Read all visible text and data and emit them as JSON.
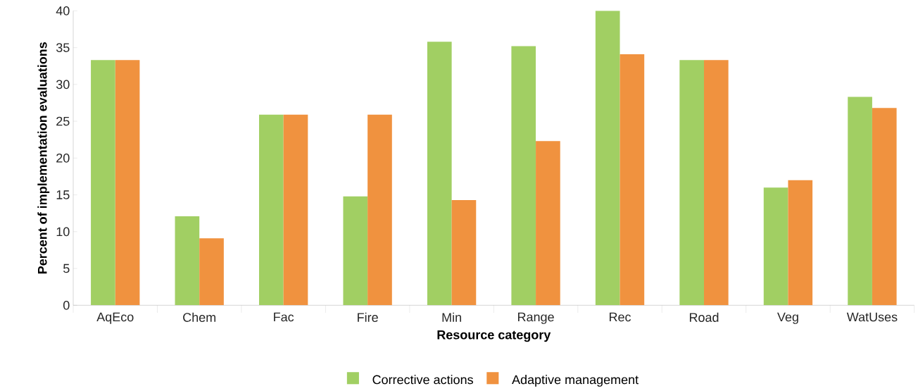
{
  "chart_data": {
    "type": "bar",
    "xlabel": "Resource category",
    "ylabel": "Percent of implementation evaluations",
    "categories": [
      "AqEco",
      "Chem",
      "Fac",
      "Fire",
      "Min",
      "Range",
      "Rec",
      "Road",
      "Veg",
      "WatUses"
    ],
    "series": [
      {
        "name": "Corrective actions",
        "color": "#a1cf63",
        "values": [
          33.3,
          12.1,
          25.9,
          14.8,
          35.8,
          35.2,
          40.0,
          33.3,
          16.0,
          28.3
        ]
      },
      {
        "name": "Adaptive management",
        "color": "#f0923f",
        "values": [
          33.3,
          9.1,
          25.9,
          25.9,
          14.3,
          22.3,
          34.1,
          33.3,
          17.0,
          26.8
        ]
      }
    ],
    "ylim": [
      0,
      40
    ],
    "yticks": [
      0,
      5,
      10,
      15,
      20,
      25,
      30,
      35,
      40
    ],
    "grid": false,
    "legend": "bottom"
  }
}
